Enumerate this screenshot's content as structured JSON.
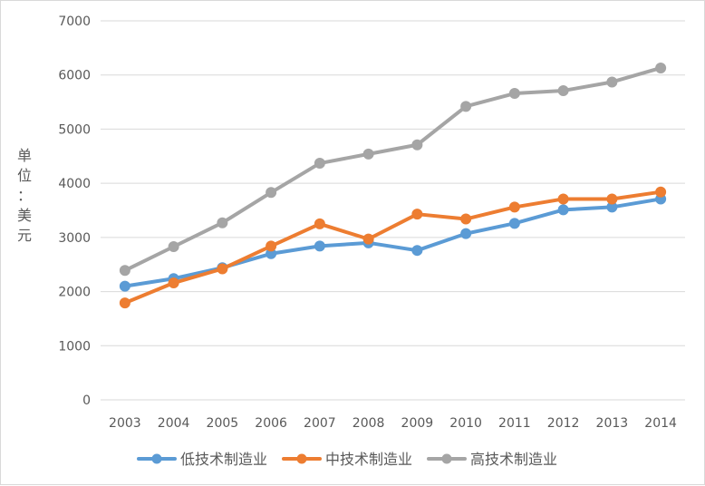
{
  "chart_data": {
    "type": "line",
    "title": "",
    "xlabel": "",
    "ylabel": "单位：美元",
    "ylabel_chars": [
      "单",
      "位",
      "：",
      "美",
      "元"
    ],
    "categories": [
      "2003",
      "2004",
      "2005",
      "2006",
      "2007",
      "2008",
      "2009",
      "2010",
      "2011",
      "2012",
      "2013",
      "2014"
    ],
    "ylim": [
      0,
      7000
    ],
    "yticks": [
      0,
      1000,
      2000,
      3000,
      4000,
      5000,
      6000,
      7000
    ],
    "grid": true,
    "legend_position": "bottom",
    "series": [
      {
        "name": "低技术制造业",
        "color": "#5b9bd5",
        "values": [
          2100,
          2240,
          2440,
          2700,
          2840,
          2900,
          2760,
          3070,
          3260,
          3510,
          3560,
          3710
        ]
      },
      {
        "name": "中技术制造业",
        "color": "#ed7d31",
        "values": [
          1790,
          2160,
          2420,
          2840,
          3250,
          2970,
          3430,
          3340,
          3560,
          3710,
          3710,
          3840
        ]
      },
      {
        "name": "高技术制造业",
        "color": "#a5a5a5",
        "values": [
          2390,
          2830,
          3270,
          3830,
          4370,
          4540,
          4710,
          5420,
          5660,
          5710,
          5870,
          6130
        ]
      }
    ]
  }
}
